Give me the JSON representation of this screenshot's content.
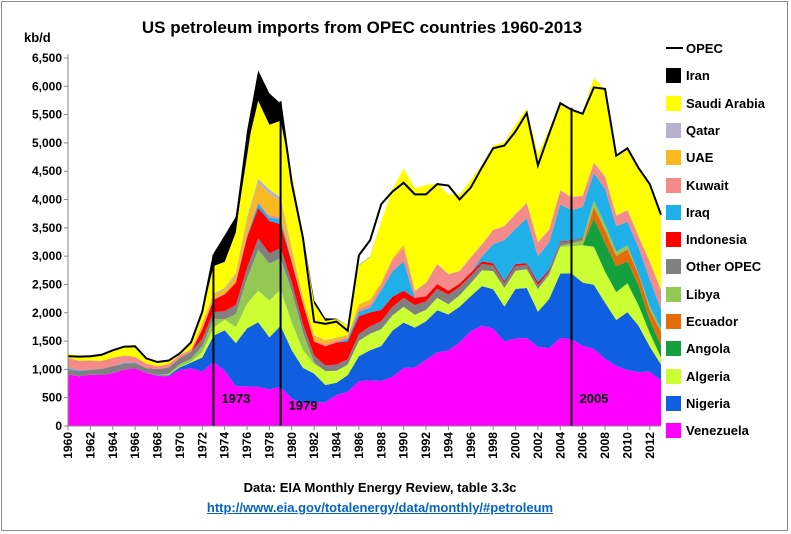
{
  "title": "US petroleum imports from OPEC countries 1960-2013",
  "source_note": "Data: EIA Monthly Energy Review, table 3.3c",
  "source_link": "http://www.eia.gov/totalenergy/data/monthly/#petroleum",
  "colors": {
    "Venezuela": "#ff00ff",
    "Nigeria": "#0f5fe0",
    "Algeria": "#ccff33",
    "Angola": "#15a040",
    "Ecuador": "#e46c0a",
    "Libya": "#92c853",
    "Other OPEC": "#808080",
    "Indonesia": "#ff0000",
    "Iraq": "#1fb0ea",
    "Kuwait": "#f48a8a",
    "UAE": "#f8b820",
    "Qatar": "#b8b0cc",
    "Saudi Arabia": "#ffff00",
    "Iran": "#000000",
    "OPEC": "#000000"
  },
  "chart_data": {
    "type": "area",
    "stacked": true,
    "title": "US petroleum imports from OPEC countries 1960-2013",
    "ylabel": "kb/d",
    "xlabel": "",
    "ylim": [
      0,
      6500
    ],
    "yticks": [
      "0",
      "500",
      "1,000",
      "1,500",
      "2,000",
      "2,500",
      "3,000",
      "3,500",
      "4,000",
      "4,500",
      "5,000",
      "5,500",
      "6,000",
      "6,500"
    ],
    "xlim": [
      1960,
      2013
    ],
    "xticks": [
      "1960",
      "1962",
      "1964",
      "1966",
      "1968",
      "1970",
      "1972",
      "1974",
      "1976",
      "1978",
      "1980",
      "1982",
      "1984",
      "1986",
      "1988",
      "1990",
      "1992",
      "1994",
      "1996",
      "1998",
      "2000",
      "2002",
      "2004",
      "2006",
      "2008",
      "2010",
      "2012"
    ],
    "grid": false,
    "legend_position": "right",
    "legend": [
      "OPEC",
      "Iran",
      "Saudi Arabia",
      "Qatar",
      "UAE",
      "Kuwait",
      "Iraq",
      "Indonesia",
      "Other OPEC",
      "Libya",
      "Ecuador",
      "Angola",
      "Algeria",
      "Nigeria",
      "Venezuela"
    ],
    "markers": [
      {
        "year": 1973,
        "label": "1973"
      },
      {
        "year": 1979,
        "label": "1979"
      },
      {
        "year": 2005,
        "label": "2005"
      }
    ],
    "x": [
      1960,
      1961,
      1962,
      1963,
      1964,
      1965,
      1966,
      1967,
      1968,
      1969,
      1970,
      1971,
      1972,
      1973,
      1974,
      1975,
      1976,
      1977,
      1978,
      1979,
      1980,
      1981,
      1982,
      1983,
      1984,
      1985,
      1986,
      1987,
      1988,
      1989,
      1990,
      1991,
      1992,
      1993,
      1994,
      1995,
      1996,
      1997,
      1998,
      1999,
      2000,
      2001,
      2002,
      2003,
      2004,
      2005,
      2006,
      2007,
      2008,
      2009,
      2010,
      2011,
      2012,
      2013
    ],
    "series": [
      {
        "name": "Venezuela",
        "values": [
          911,
          879,
          906,
          900,
          933,
          994,
          1018,
          938,
          886,
          875,
          989,
          1020,
          959,
          1135,
          979,
          702,
          700,
          690,
          646,
          690,
          481,
          406,
          412,
          422,
          548,
          605,
          793,
          804,
          794,
          870,
          1025,
          1035,
          1170,
          1300,
          1334,
          1480,
          1676,
          1773,
          1719,
          1493,
          1546,
          1553,
          1398,
          1376,
          1554,
          1529,
          1419,
          1361,
          1189,
          1063,
          988,
          951,
          960,
          806
        ]
      },
      {
        "name": "Nigeria",
        "values": [
          0,
          0,
          0,
          0,
          0,
          0,
          0,
          0,
          10,
          20,
          49,
          102,
          251,
          459,
          713,
          762,
          1025,
          1143,
          919,
          1080,
          857,
          620,
          514,
          302,
          216,
          293,
          440,
          535,
          618,
          815,
          800,
          703,
          681,
          744,
          637,
          627,
          617,
          698,
          696,
          617,
          875,
          885,
          621,
          867,
          1140,
          1166,
          1114,
          1134,
          988,
          809,
          1023,
          818,
          441,
          281
        ]
      },
      {
        "name": "Algeria",
        "values": [
          0,
          0,
          0,
          0,
          0,
          0,
          0,
          0,
          5,
          8,
          8,
          15,
          93,
          136,
          190,
          282,
          432,
          559,
          649,
          636,
          488,
          311,
          170,
          246,
          210,
          187,
          271,
          290,
          300,
          270,
          280,
          226,
          200,
          220,
          180,
          200,
          230,
          280,
          320,
          330,
          320,
          330,
          400,
          430,
          470,
          480,
          660,
          670,
          550,
          490,
          510,
          360,
          240,
          120
        ]
      },
      {
        "name": "Angola",
        "values": [
          0,
          0,
          0,
          0,
          0,
          0,
          0,
          0,
          0,
          0,
          0,
          0,
          0,
          0,
          0,
          0,
          0,
          0,
          0,
          0,
          0,
          0,
          0,
          0,
          0,
          0,
          0,
          0,
          0,
          0,
          0,
          0,
          0,
          0,
          0,
          0,
          0,
          0,
          0,
          0,
          0,
          0,
          0,
          0,
          0,
          0,
          0,
          500,
          510,
          460,
          390,
          350,
          230,
          220
        ]
      },
      {
        "name": "Ecuador",
        "values": [
          0,
          0,
          0,
          0,
          0,
          0,
          0,
          0,
          0,
          0,
          0,
          0,
          0,
          0,
          0,
          0,
          0,
          0,
          0,
          0,
          0,
          0,
          0,
          0,
          0,
          0,
          0,
          0,
          0,
          0,
          0,
          0,
          0,
          0,
          0,
          0,
          0,
          0,
          0,
          0,
          0,
          0,
          0,
          0,
          0,
          0,
          0,
          200,
          220,
          180,
          210,
          200,
          180,
          235
        ]
      },
      {
        "name": "Libya",
        "values": [
          0,
          0,
          0,
          0,
          0,
          0,
          0,
          0,
          0,
          20,
          47,
          53,
          104,
          164,
          4,
          232,
          453,
          723,
          654,
          560,
          554,
          319,
          27,
          0,
          0,
          0,
          0,
          0,
          0,
          0,
          0,
          0,
          0,
          0,
          0,
          0,
          0,
          0,
          0,
          0,
          0,
          0,
          0,
          0,
          20,
          56,
          87,
          117,
          103,
          79,
          70,
          15,
          61,
          60
        ]
      },
      {
        "name": "Other OPEC",
        "values": [
          88,
          88,
          88,
          110,
          123,
          103,
          95,
          84,
          105,
          108,
          110,
          120,
          130,
          120,
          140,
          160,
          180,
          200,
          180,
          180,
          160,
          140,
          120,
          100,
          110,
          95,
          120,
          130,
          140,
          150,
          160,
          170,
          150,
          160,
          170,
          150,
          130,
          110,
          100,
          90,
          85,
          80,
          70,
          60,
          55,
          40,
          30,
          0,
          0,
          0,
          0,
          0,
          0,
          0
        ]
      },
      {
        "name": "Indonesia",
        "values": [
          0,
          0,
          0,
          0,
          0,
          0,
          0,
          0,
          0,
          0,
          0,
          0,
          170,
          213,
          300,
          390,
          539,
          541,
          573,
          420,
          348,
          366,
          248,
          338,
          391,
          314,
          314,
          249,
          200,
          179,
          124,
          128,
          89,
          84,
          69,
          58,
          55,
          45,
          40,
          30,
          35,
          26,
          50,
          30,
          20,
          10,
          10,
          0,
          0,
          0,
          0,
          0,
          0,
          0
        ]
      },
      {
        "name": "Iraq",
        "values": [
          22,
          16,
          4,
          0,
          0,
          16,
          8,
          0,
          0,
          0,
          0,
          0,
          0,
          4,
          1,
          2,
          26,
          74,
          62,
          88,
          28,
          0,
          0,
          0,
          0,
          46,
          81,
          83,
          345,
          449,
          518,
          0,
          0,
          0,
          0,
          0,
          1,
          89,
          336,
          725,
          620,
          795,
          459,
          481,
          656,
          527,
          553,
          484,
          627,
          450,
          415,
          459,
          476,
          341
        ]
      },
      {
        "name": "Kuwait",
        "values": [
          182,
          170,
          160,
          140,
          150,
          130,
          100,
          80,
          50,
          60,
          50,
          30,
          20,
          16,
          5,
          16,
          33,
          31,
          34,
          41,
          23,
          10,
          20,
          30,
          40,
          20,
          50,
          70,
          100,
          200,
          230,
          110,
          230,
          350,
          290,
          220,
          270,
          210,
          250,
          240,
          260,
          270,
          240,
          220,
          240,
          230,
          185,
          180,
          210,
          180,
          200,
          190,
          305,
          330
        ]
      },
      {
        "name": "UAE",
        "values": [
          0,
          0,
          0,
          0,
          0,
          0,
          0,
          0,
          0,
          0,
          0,
          20,
          73,
          71,
          76,
          117,
          235,
          333,
          385,
          281,
          172,
          81,
          86,
          71,
          43,
          45,
          78,
          71,
          38,
          23,
          68,
          20,
          12,
          0,
          0,
          0,
          0,
          0,
          0,
          3,
          8,
          3,
          12,
          0,
          12,
          8,
          10,
          10,
          10,
          10,
          10,
          10,
          10,
          10
        ]
      },
      {
        "name": "Qatar",
        "values": [
          0,
          0,
          0,
          0,
          0,
          0,
          0,
          0,
          0,
          0,
          0,
          0,
          10,
          20,
          30,
          40,
          60,
          70,
          75,
          60,
          40,
          20,
          10,
          10,
          5,
          5,
          5,
          5,
          5,
          5,
          5,
          5,
          5,
          5,
          5,
          5,
          5,
          5,
          5,
          5,
          5,
          5,
          5,
          5,
          5,
          5,
          5,
          5,
          5,
          5,
          5,
          5,
          5,
          5
        ]
      },
      {
        "name": "Saudi Arabia",
        "values": [
          84,
          73,
          74,
          108,
          130,
          158,
          187,
          92,
          74,
          65,
          30,
          128,
          190,
          485,
          461,
          715,
          1230,
          1380,
          1144,
          1356,
          1261,
          1129,
          552,
          337,
          325,
          168,
          685,
          751,
          1073,
          1224,
          1339,
          1802,
          1720,
          1414,
          1402,
          1344,
          1363,
          1407,
          1491,
          1478,
          1572,
          1662,
          1552,
          1774,
          1558,
          1537,
          1463,
          1485,
          1529,
          1004,
          1096,
          1195,
          1365,
          1329
        ]
      },
      {
        "name": "Iran",
        "values": [
          0,
          0,
          0,
          0,
          0,
          0,
          0,
          0,
          0,
          0,
          0,
          0,
          20,
          223,
          469,
          280,
          300,
          535,
          555,
          304,
          8,
          0,
          61,
          48,
          9,
          0,
          4,
          4,
          0,
          0,
          0,
          0,
          0,
          0,
          0,
          0,
          0,
          0,
          0,
          0,
          0,
          0,
          0,
          0,
          0,
          0,
          0,
          0,
          0,
          0,
          0,
          0,
          0,
          0
        ]
      }
    ],
    "total": {
      "name": "OPEC",
      "values": [
        1233,
        1226,
        1232,
        1258,
        1336,
        1401,
        1408,
        1194,
        1130,
        1156,
        1283,
        1478,
        2019,
        2993,
        3280,
        3599,
        4884,
        6190,
        5645,
        5700,
        4284,
        3323,
        1840,
        1804,
        1844,
        1683,
        3015,
        3281,
        3920,
        4140,
        4296,
        4092,
        4092,
        4273,
        4247,
        4002,
        4211,
        4569,
        4905,
        4953,
        5203,
        5528,
        4605,
        5162,
        5701,
        5587,
        5515,
        5980,
        5954,
        4774,
        4906,
        4555,
        4271,
        3731
      ]
    }
  }
}
